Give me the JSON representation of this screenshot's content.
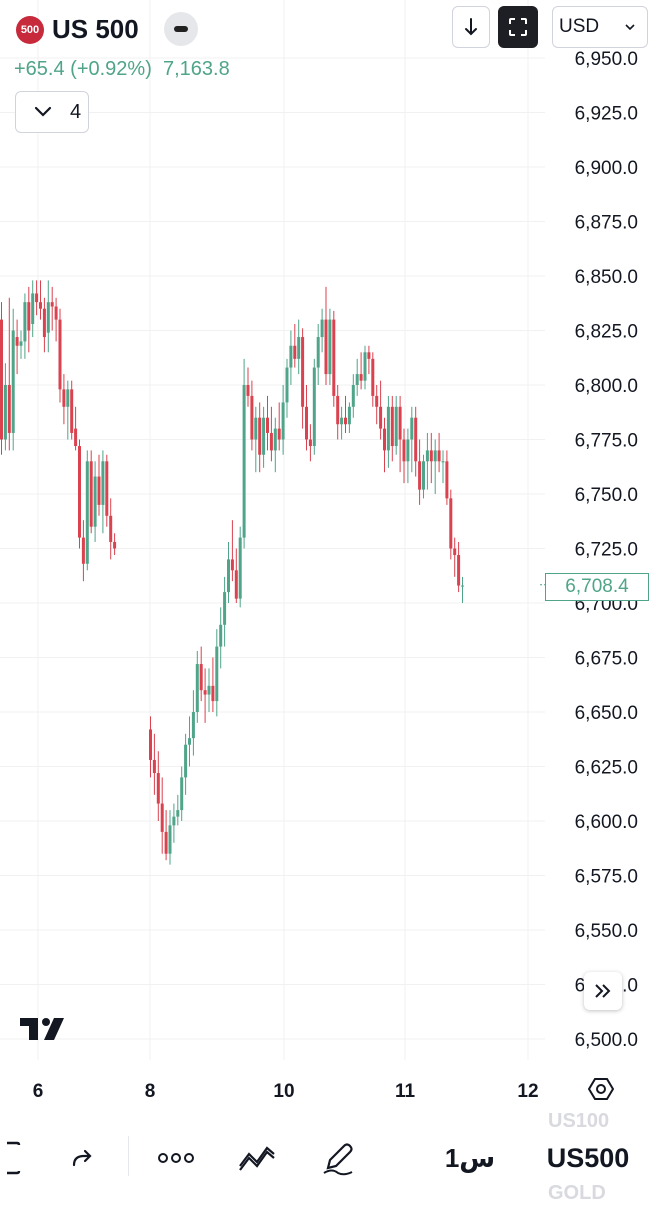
{
  "header": {
    "badge": "500",
    "symbol": "US 500",
    "change": "+65.4 (+0.92%)",
    "last_price": "7,163.8",
    "indicator_count": "4",
    "currency": "USD"
  },
  "price_label": "6,708.4",
  "bottom_bar": {
    "interval": "1س",
    "symbol": "US500",
    "ghost_above": "US100",
    "ghost_below": "GOLD"
  },
  "colors": {
    "up": "#4fa489",
    "down": "#d9424e",
    "grid": "#f0f1f3",
    "text": "#131722"
  },
  "icons": [
    "minus-icon",
    "chevron-down-icon",
    "download-icon",
    "fullscreen-icon",
    "double-chevron-right-icon",
    "tradingview-logo-icon",
    "gear-icon",
    "redo-icon",
    "more-icon",
    "indicators-icon",
    "pen-icon",
    "layout-icon"
  ],
  "chart_data": {
    "type": "candlestick",
    "y_ticks": [
      "6,950.0",
      "6,925.0",
      "6,900.0",
      "6,875.0",
      "6,850.0",
      "6,825.0",
      "6,800.0",
      "6,775.0",
      "6,750.0",
      "6,725.0",
      "6,700.0",
      "6,675.0",
      "6,650.0",
      "6,625.0",
      "6,600.0",
      "6,575.0",
      "6,550.0",
      "6,525.0",
      "6,500.0"
    ],
    "x_ticks": [
      "6",
      "8",
      "10",
      "11",
      "12"
    ],
    "ylim": [
      6490,
      6960
    ],
    "grid": true,
    "current_price": 6708.4,
    "segments": [
      [
        [
          6830,
          6838,
          6768,
          6775
        ],
        [
          6775,
          6810,
          6770,
          6800
        ],
        [
          6800,
          6840,
          6770,
          6778
        ],
        [
          6778,
          6835,
          6770,
          6825
        ],
        [
          6822,
          6830,
          6805,
          6818
        ],
        [
          6818,
          6825,
          6812,
          6820
        ],
        [
          6820,
          6842,
          6812,
          6838
        ],
        [
          6838,
          6845,
          6815,
          6825
        ],
        [
          6828,
          6848,
          6822,
          6842
        ],
        [
          6842,
          6848,
          6832,
          6838
        ],
        [
          6838,
          6848,
          6830,
          6835
        ],
        [
          6835,
          6840,
          6815,
          6822
        ],
        [
          6824,
          6848,
          6815,
          6838
        ],
        [
          6838,
          6845,
          6825,
          6836
        ],
        [
          6836,
          6840,
          6820,
          6830
        ],
        [
          6830,
          6835,
          6792,
          6798
        ],
        [
          6798,
          6805,
          6782,
          6790
        ],
        [
          6790,
          6802,
          6775,
          6798
        ],
        [
          6798,
          6802,
          6775,
          6778
        ],
        [
          6780,
          6790,
          6770,
          6772
        ],
        [
          6772,
          6775,
          6725,
          6730
        ],
        [
          6730,
          6738,
          6710,
          6718
        ],
        [
          6718,
          6770,
          6715,
          6765
        ],
        [
          6765,
          6770,
          6732,
          6735
        ],
        [
          6735,
          6765,
          6728,
          6758
        ],
        [
          6758,
          6768,
          6740,
          6745
        ],
        [
          6745,
          6770,
          6732,
          6765
        ],
        [
          6765,
          6768,
          6735,
          6740
        ],
        [
          6740,
          6748,
          6720,
          6728
        ],
        [
          6728,
          6732,
          6722,
          6725
        ]
      ],
      [
        [
          6642,
          6648,
          6620,
          6628
        ],
        [
          6628,
          6640,
          6612,
          6622
        ],
        [
          6622,
          6632,
          6600,
          6608
        ],
        [
          6608,
          6620,
          6585,
          6595
        ],
        [
          6595,
          6605,
          6582,
          6585
        ],
        [
          6585,
          6605,
          6580,
          6598
        ],
        [
          6598,
          6608,
          6590,
          6602
        ],
        [
          6602,
          6612,
          6598,
          6605
        ],
        [
          6605,
          6625,
          6600,
          6620
        ],
        [
          6620,
          6640,
          6612,
          6635
        ],
        [
          6635,
          6648,
          6625,
          6638
        ],
        [
          6638,
          6660,
          6630,
          6650
        ],
        [
          6650,
          6678,
          6645,
          6672
        ],
        [
          6672,
          6680,
          6655,
          6660
        ],
        [
          6660,
          6670,
          6645,
          6658
        ],
        [
          6658,
          6670,
          6650,
          6662
        ],
        [
          6662,
          6675,
          6650,
          6655
        ],
        [
          6655,
          6688,
          6648,
          6680
        ],
        [
          6680,
          6698,
          6670,
          6690
        ],
        [
          6690,
          6712,
          6680,
          6705
        ],
        [
          6705,
          6728,
          6700,
          6720
        ],
        [
          6720,
          6738,
          6710,
          6715
        ],
        [
          6715,
          6725,
          6700,
          6702
        ],
        [
          6702,
          6735,
          6698,
          6730
        ],
        [
          6730,
          6812,
          6725,
          6800
        ],
        [
          6800,
          6808,
          6790,
          6795
        ],
        [
          6795,
          6802,
          6770,
          6775
        ],
        [
          6775,
          6790,
          6760,
          6785
        ],
        [
          6785,
          6792,
          6760,
          6768
        ],
        [
          6768,
          6790,
          6762,
          6785
        ],
        [
          6785,
          6795,
          6770,
          6778
        ],
        [
          6778,
          6790,
          6765,
          6770
        ],
        [
          6770,
          6785,
          6760,
          6780
        ],
        [
          6780,
          6792,
          6770,
          6775
        ],
        [
          6775,
          6800,
          6768,
          6792
        ],
        [
          6792,
          6812,
          6785,
          6808
        ],
        [
          6808,
          6825,
          6800,
          6818
        ],
        [
          6818,
          6828,
          6808,
          6812
        ],
        [
          6812,
          6830,
          6805,
          6822
        ],
        [
          6822,
          6826,
          6780,
          6790
        ],
        [
          6790,
          6800,
          6770,
          6775
        ],
        [
          6775,
          6782,
          6765,
          6772
        ],
        [
          6772,
          6812,
          6768,
          6808
        ],
        [
          6808,
          6828,
          6800,
          6822
        ],
        [
          6822,
          6835,
          6815,
          6830
        ],
        [
          6830,
          6845,
          6800,
          6805
        ],
        [
          6805,
          6835,
          6800,
          6830
        ],
        [
          6830,
          6834,
          6790,
          6795
        ],
        [
          6795,
          6800,
          6775,
          6782
        ],
        [
          6782,
          6790,
          6775,
          6785
        ],
        [
          6785,
          6795,
          6778,
          6782
        ],
        [
          6782,
          6792,
          6778,
          6790
        ],
        [
          6790,
          6805,
          6785,
          6800
        ],
        [
          6800,
          6812,
          6795,
          6805
        ],
        [
          6805,
          6815,
          6798,
          6802
        ],
        [
          6802,
          6818,
          6798,
          6815
        ],
        [
          6815,
          6818,
          6805,
          6812
        ],
        [
          6812,
          6815,
          6790,
          6795
        ],
        [
          6795,
          6800,
          6782,
          6790
        ],
        [
          6790,
          6802,
          6775,
          6780
        ],
        [
          6780,
          6785,
          6760,
          6770
        ],
        [
          6770,
          6795,
          6762,
          6790
        ],
        [
          6790,
          6795,
          6765,
          6772
        ],
        [
          6772,
          6795,
          6768,
          6790
        ],
        [
          6790,
          6795,
          6760,
          6775
        ],
        [
          6775,
          6780,
          6755,
          6765
        ],
        [
          6765,
          6780,
          6755,
          6775
        ],
        [
          6775,
          6790,
          6760,
          6785
        ],
        [
          6785,
          6790,
          6758,
          6765
        ],
        [
          6765,
          6775,
          6745,
          6752
        ],
        [
          6752,
          6768,
          6748,
          6765
        ],
        [
          6765,
          6778,
          6752,
          6770
        ],
        [
          6770,
          6778,
          6755,
          6765
        ],
        [
          6765,
          6775,
          6750,
          6770
        ],
        [
          6770,
          6778,
          6760,
          6765
        ],
        [
          6765,
          6770,
          6755,
          6765
        ],
        [
          6765,
          6770,
          6745,
          6748
        ],
        [
          6748,
          6752,
          6720,
          6725
        ],
        [
          6725,
          6730,
          6712,
          6722
        ],
        [
          6722,
          6728,
          6705,
          6708
        ],
        [
          6708,
          6712,
          6700,
          6708
        ]
      ]
    ]
  }
}
